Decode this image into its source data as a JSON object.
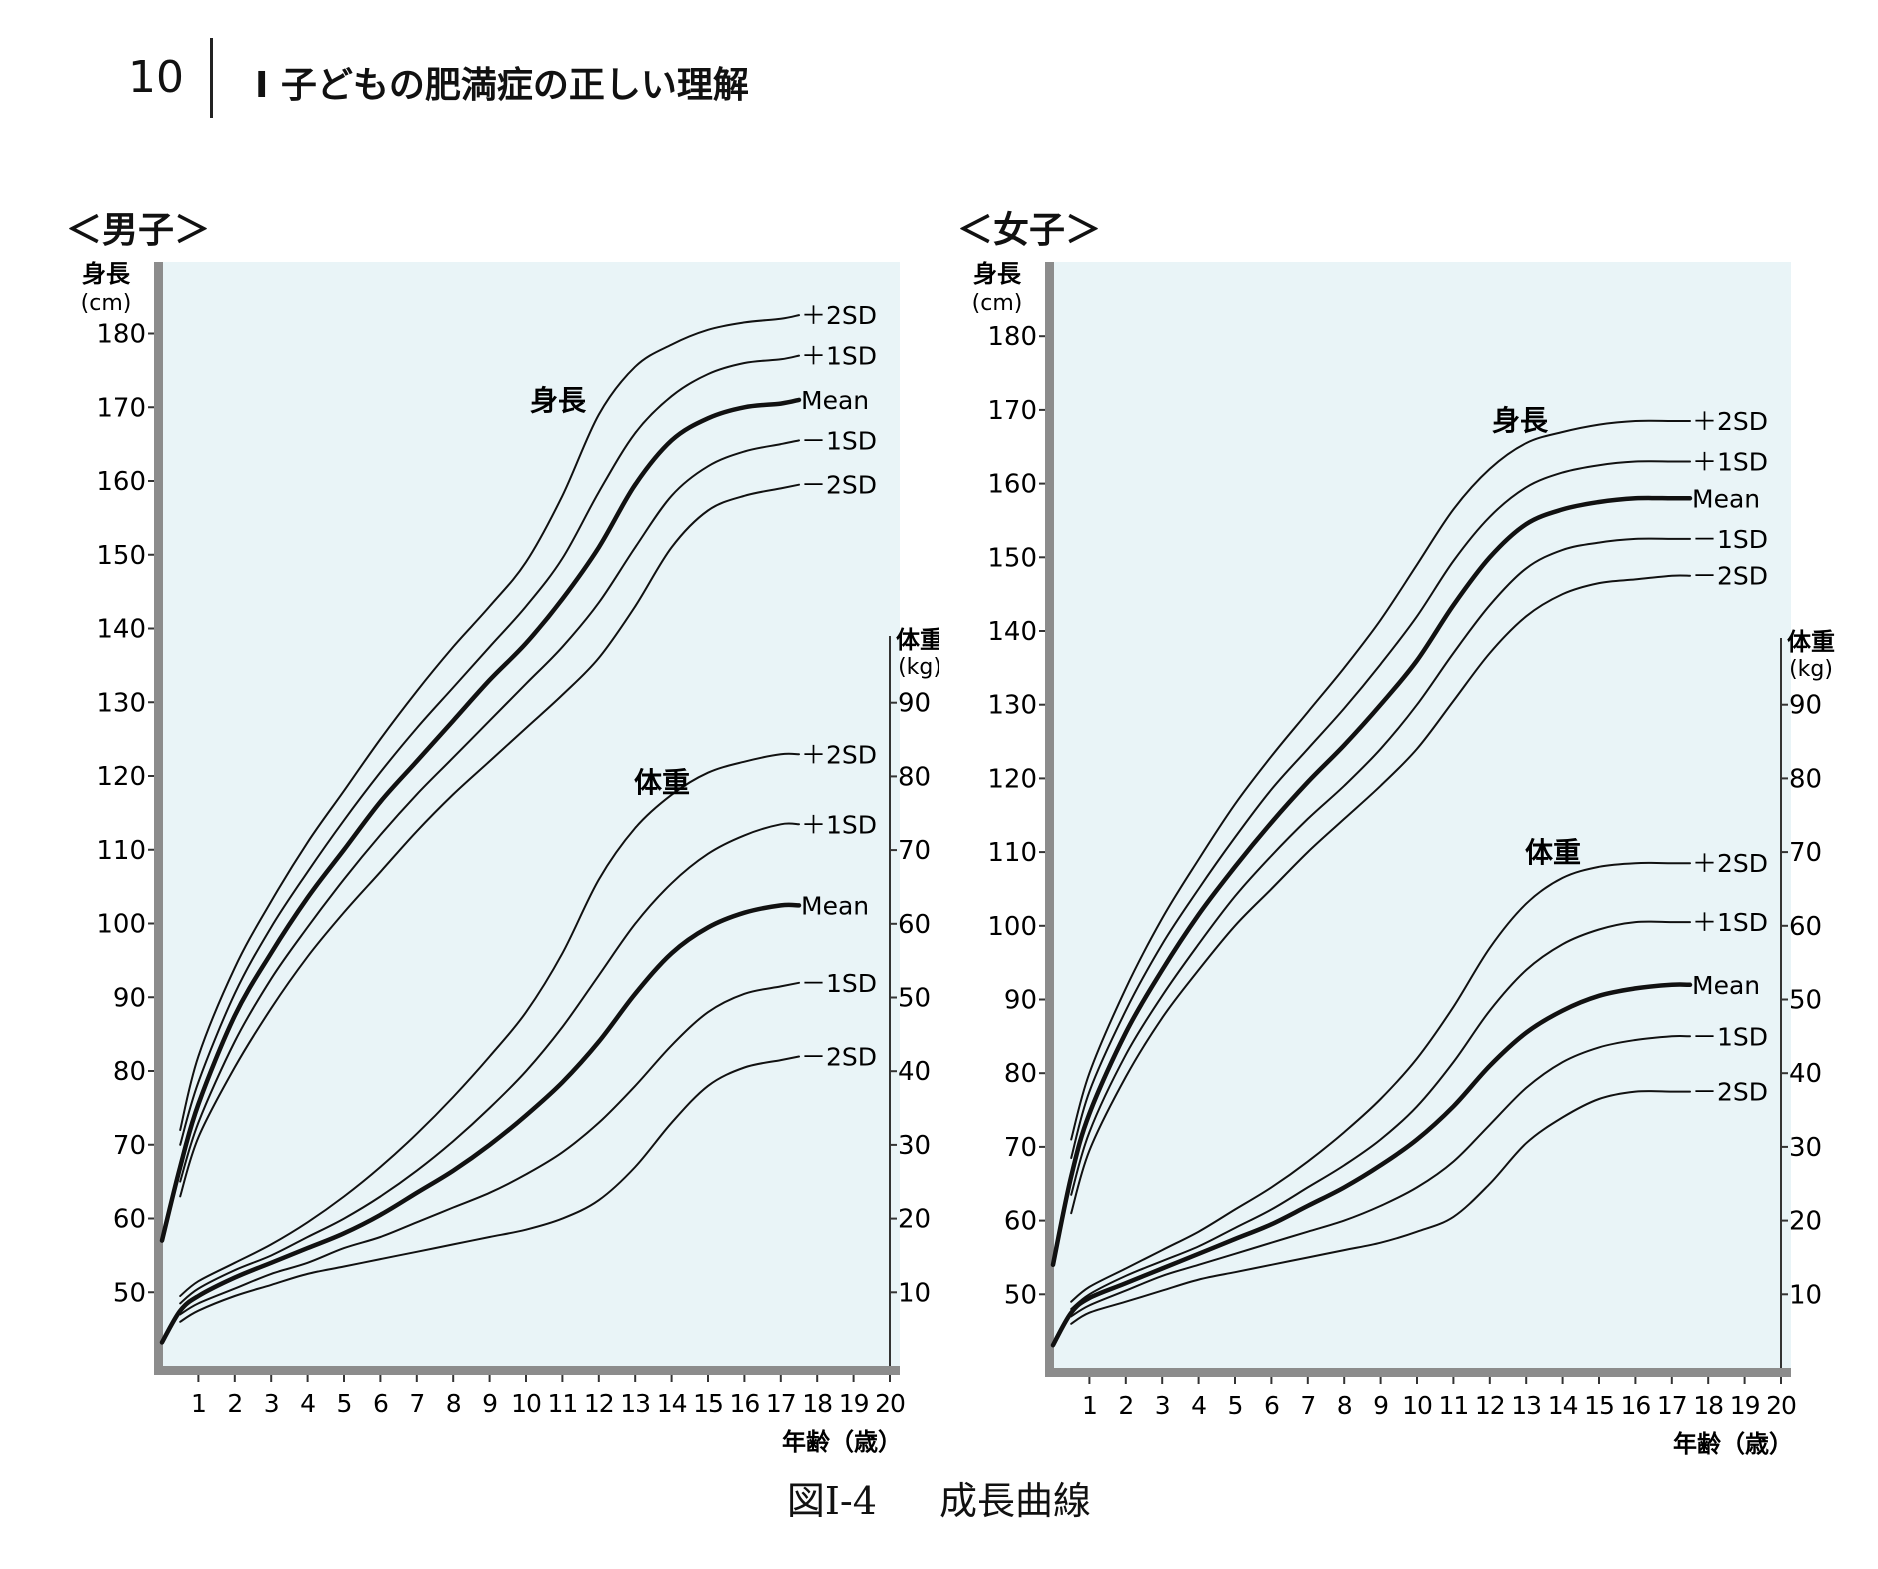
{
  "page": {
    "number": "10",
    "chapter": "Ⅰ 子どもの肥満症の正しい理解"
  },
  "caption": {
    "figure_number": "図Ⅰ-4",
    "title": "成長曲線"
  },
  "colors": {
    "plot_background": "#e9f4f7",
    "axis": "#444444",
    "curve": "#111111"
  },
  "chart_data": [
    {
      "type": "line",
      "title": "＜男子＞",
      "xlabel": "年齢（歳）",
      "xlim": [
        0,
        20
      ],
      "x_ticks": [
        "1",
        "2",
        "3",
        "4",
        "5",
        "6",
        "7",
        "8",
        "9",
        "10",
        "11",
        "12",
        "13",
        "14",
        "15",
        "16",
        "17",
        "18",
        "19",
        "20"
      ],
      "left_axis": {
        "label_line1": "身長",
        "label_line2": "(cm)",
        "ylim": [
          40,
          190
        ],
        "ticks": [
          "50",
          "60",
          "70",
          "80",
          "90",
          "100",
          "110",
          "120",
          "130",
          "140",
          "150",
          "160",
          "170",
          "180"
        ]
      },
      "right_axis": {
        "label_line1": "体重",
        "label_line2": "(kg)",
        "ylim": [
          0,
          100
        ],
        "ticks": [
          "10",
          "20",
          "30",
          "40",
          "50",
          "60",
          "70",
          "80",
          "90"
        ]
      },
      "height_label": "身長",
      "weight_label": "体重",
      "height_series": [
        {
          "name": "+2SD",
          "x": [
            0.5,
            1,
            2,
            3,
            4,
            5,
            6,
            7,
            8,
            9,
            10,
            11,
            12,
            13,
            14,
            15,
            16,
            17,
            17.5
          ],
          "values": [
            72,
            82,
            94,
            103,
            111,
            118,
            125,
            131.5,
            137.5,
            143,
            149,
            158,
            169,
            175.5,
            178.5,
            180.5,
            181.5,
            182,
            182.5
          ]
        },
        {
          "name": "+1SD",
          "x": [
            0.5,
            1,
            2,
            3,
            4,
            5,
            6,
            7,
            8,
            9,
            10,
            11,
            12,
            13,
            14,
            15,
            16,
            17,
            17.5
          ],
          "values": [
            70,
            78.5,
            90.5,
            99.5,
            107,
            114,
            120.5,
            126.5,
            132,
            137.5,
            143,
            149.5,
            158.5,
            166.5,
            171.5,
            174.5,
            176,
            176.5,
            177
          ]
        },
        {
          "name": "Mean",
          "x": [
            0,
            0.5,
            1,
            2,
            3,
            4,
            5,
            6,
            7,
            8,
            9,
            10,
            11,
            12,
            13,
            14,
            15,
            16,
            17,
            17.5
          ],
          "values": [
            57,
            67,
            75.5,
            87.5,
            96,
            103.5,
            110,
            116.5,
            122,
            127.5,
            133,
            138,
            144,
            151,
            159.5,
            165.5,
            168.5,
            170,
            170.5,
            171
          ]
        },
        {
          "name": "-1SD",
          "x": [
            0.5,
            1,
            2,
            3,
            4,
            5,
            6,
            7,
            8,
            9,
            10,
            11,
            12,
            13,
            14,
            15,
            16,
            17,
            17.5
          ],
          "values": [
            65,
            73,
            84,
            92.5,
            99.5,
            106,
            112,
            117.5,
            122.5,
            127.5,
            132.5,
            137.5,
            143.5,
            151,
            158,
            162,
            164,
            165,
            165.5
          ]
        },
        {
          "name": "-2SD",
          "x": [
            0.5,
            1,
            2,
            3,
            4,
            5,
            6,
            7,
            8,
            9,
            10,
            11,
            12,
            13,
            14,
            15,
            16,
            17,
            17.5
          ],
          "values": [
            63,
            71,
            80.5,
            88.5,
            95.5,
            101.5,
            107,
            112.5,
            117.5,
            122,
            126.5,
            131,
            136,
            143,
            151,
            156,
            158,
            159,
            159.5
          ]
        }
      ],
      "weight_series": [
        {
          "name": "+2SD",
          "x": [
            0.5,
            1,
            2,
            3,
            4,
            5,
            6,
            7,
            8,
            9,
            10,
            11,
            12,
            13,
            14,
            15,
            16,
            17,
            17.5
          ],
          "values": [
            9.5,
            11.5,
            14,
            16.5,
            19.5,
            23,
            27,
            31.5,
            36.5,
            42,
            48,
            56,
            66,
            73,
            77.5,
            80.5,
            82,
            83,
            83
          ]
        },
        {
          "name": "+1SD",
          "x": [
            0.5,
            1,
            2,
            3,
            4,
            5,
            6,
            7,
            8,
            9,
            10,
            11,
            12,
            13,
            14,
            15,
            16,
            17,
            17.5
          ],
          "values": [
            8.5,
            10.5,
            13,
            15,
            17.5,
            20,
            23,
            26.5,
            30.5,
            35,
            40,
            46,
            53,
            60,
            65.5,
            69.5,
            72,
            73.5,
            73.5
          ]
        },
        {
          "name": "Mean",
          "x": [
            0,
            0.5,
            1,
            2,
            3,
            4,
            5,
            6,
            7,
            8,
            9,
            10,
            11,
            12,
            13,
            14,
            15,
            16,
            17,
            17.5
          ],
          "values": [
            3.2,
            7.5,
            9.5,
            12,
            14,
            16,
            18,
            20.5,
            23.5,
            26.5,
            30,
            34,
            38.5,
            44,
            50.5,
            56,
            59.5,
            61.5,
            62.5,
            62.5
          ]
        },
        {
          "name": "-1SD",
          "x": [
            0.5,
            1,
            2,
            3,
            4,
            5,
            6,
            7,
            8,
            9,
            10,
            11,
            12,
            13,
            14,
            15,
            16,
            17,
            17.5
          ],
          "values": [
            7,
            8.5,
            10.5,
            12.5,
            14,
            16,
            17.5,
            19.5,
            21.5,
            23.5,
            26,
            29,
            33,
            38,
            43.5,
            48,
            50.5,
            51.5,
            52
          ]
        },
        {
          "name": "-2SD",
          "x": [
            0.5,
            1,
            2,
            3,
            4,
            5,
            6,
            7,
            8,
            9,
            10,
            11,
            12,
            13,
            14,
            15,
            16,
            17,
            17.5
          ],
          "values": [
            6,
            7.5,
            9.5,
            11,
            12.5,
            13.5,
            14.5,
            15.5,
            16.5,
            17.5,
            18.5,
            20,
            22.5,
            27,
            33,
            38,
            40.5,
            41.5,
            42
          ]
        }
      ]
    },
    {
      "type": "line",
      "title": "＜女子＞",
      "xlabel": "年齢（歳）",
      "xlim": [
        0,
        20
      ],
      "x_ticks": [
        "1",
        "2",
        "3",
        "4",
        "5",
        "6",
        "7",
        "8",
        "9",
        "10",
        "11",
        "12",
        "13",
        "14",
        "15",
        "16",
        "17",
        "18",
        "19",
        "20"
      ],
      "left_axis": {
        "label_line1": "身長",
        "label_line2": "(cm)",
        "ylim": [
          40,
          190
        ],
        "ticks": [
          "50",
          "60",
          "70",
          "80",
          "90",
          "100",
          "110",
          "120",
          "130",
          "140",
          "150",
          "160",
          "170",
          "180"
        ]
      },
      "right_axis": {
        "label_line1": "体重",
        "label_line2": "(kg)",
        "ylim": [
          0,
          100
        ],
        "ticks": [
          "10",
          "20",
          "30",
          "40",
          "50",
          "60",
          "70",
          "80",
          "90"
        ]
      },
      "height_label": "身長",
      "weight_label": "体重",
      "height_series": [
        {
          "name": "+2SD",
          "x": [
            0.5,
            1,
            2,
            3,
            4,
            5,
            6,
            7,
            8,
            9,
            10,
            11,
            12,
            13,
            14,
            15,
            16,
            17,
            17.5
          ],
          "values": [
            71,
            80,
            91.5,
            101,
            109,
            116.5,
            123,
            129,
            135,
            141.5,
            149,
            156.5,
            162,
            165.5,
            167,
            168,
            168.5,
            168.5,
            168.5
          ]
        },
        {
          "name": "+1SD",
          "x": [
            0.5,
            1,
            2,
            3,
            4,
            5,
            6,
            7,
            8,
            9,
            10,
            11,
            12,
            13,
            14,
            15,
            16,
            17,
            17.5
          ],
          "values": [
            68.5,
            77.5,
            88.5,
            97.5,
            105,
            112,
            118.5,
            124,
            129.5,
            135.5,
            142,
            149.5,
            155.5,
            159.5,
            161.5,
            162.5,
            163,
            163,
            163
          ]
        },
        {
          "name": "Mean",
          "x": [
            0,
            0.5,
            1,
            2,
            3,
            4,
            5,
            6,
            7,
            8,
            9,
            10,
            11,
            12,
            13,
            14,
            15,
            16,
            17,
            17.5
          ],
          "values": [
            54,
            66,
            74.5,
            85.5,
            94,
            101.5,
            108,
            114,
            119.5,
            124.5,
            130,
            136,
            143.5,
            150,
            154.5,
            156.5,
            157.5,
            158,
            158,
            158
          ]
        },
        {
          "name": "-1SD",
          "x": [
            0.5,
            1,
            2,
            3,
            4,
            5,
            6,
            7,
            8,
            9,
            10,
            11,
            12,
            13,
            14,
            15,
            16,
            17,
            17.5
          ],
          "values": [
            63.5,
            72,
            82.5,
            90.5,
            97.5,
            104,
            109.5,
            114.5,
            119,
            124,
            130,
            137,
            143.5,
            148.5,
            151,
            152,
            152.5,
            152.5,
            152.5
          ]
        },
        {
          "name": "-2SD",
          "x": [
            0.5,
            1,
            2,
            3,
            4,
            5,
            6,
            7,
            8,
            9,
            10,
            11,
            12,
            13,
            14,
            15,
            16,
            17,
            17.5
          ],
          "values": [
            61,
            69.5,
            79.5,
            87.5,
            94,
            100,
            105,
            110,
            114.5,
            119,
            124,
            130.5,
            137,
            142,
            145,
            146.5,
            147,
            147.5,
            147.5
          ]
        }
      ],
      "weight_series": [
        {
          "name": "+2SD",
          "x": [
            0.5,
            1,
            2,
            3,
            4,
            5,
            6,
            7,
            8,
            9,
            10,
            11,
            12,
            13,
            14,
            15,
            16,
            17,
            17.5
          ],
          "values": [
            9,
            11,
            13.5,
            16,
            18.5,
            21.5,
            24.5,
            28,
            32,
            36.5,
            42,
            49,
            57,
            63,
            66.5,
            68,
            68.5,
            68.5,
            68.5
          ]
        },
        {
          "name": "+1SD",
          "x": [
            0.5,
            1,
            2,
            3,
            4,
            5,
            6,
            7,
            8,
            9,
            10,
            11,
            12,
            13,
            14,
            15,
            16,
            17,
            17.5
          ],
          "values": [
            8,
            10,
            12.5,
            14.5,
            16.5,
            19,
            21.5,
            24.5,
            27.5,
            31,
            35.5,
            41.5,
            48.5,
            54,
            57.5,
            59.5,
            60.5,
            60.5,
            60.5
          ]
        },
        {
          "name": "Mean",
          "x": [
            0,
            0.5,
            1,
            2,
            3,
            4,
            5,
            6,
            7,
            8,
            9,
            10,
            11,
            12,
            13,
            14,
            15,
            16,
            17,
            17.5
          ],
          "values": [
            3.1,
            7.5,
            9.5,
            11.5,
            13.5,
            15.5,
            17.5,
            19.5,
            22,
            24.5,
            27.5,
            31,
            35.5,
            41,
            45.5,
            48.5,
            50.5,
            51.5,
            52,
            52
          ]
        },
        {
          "name": "-1SD",
          "x": [
            0.5,
            1,
            2,
            3,
            4,
            5,
            6,
            7,
            8,
            9,
            10,
            11,
            12,
            13,
            14,
            15,
            16,
            17,
            17.5
          ],
          "values": [
            7,
            8.5,
            10.5,
            12.5,
            14,
            15.5,
            17,
            18.5,
            20,
            22,
            24.5,
            28,
            33,
            38,
            41.5,
            43.5,
            44.5,
            45,
            45
          ]
        },
        {
          "name": "-2SD",
          "x": [
            0.5,
            1,
            2,
            3,
            4,
            5,
            6,
            7,
            8,
            9,
            10,
            11,
            12,
            13,
            14,
            15,
            16,
            17,
            17.5
          ],
          "values": [
            6,
            7.5,
            9,
            10.5,
            12,
            13,
            14,
            15,
            16,
            17,
            18.5,
            20.5,
            25,
            30.5,
            34,
            36.5,
            37.5,
            37.5,
            37.5
          ]
        }
      ]
    }
  ]
}
